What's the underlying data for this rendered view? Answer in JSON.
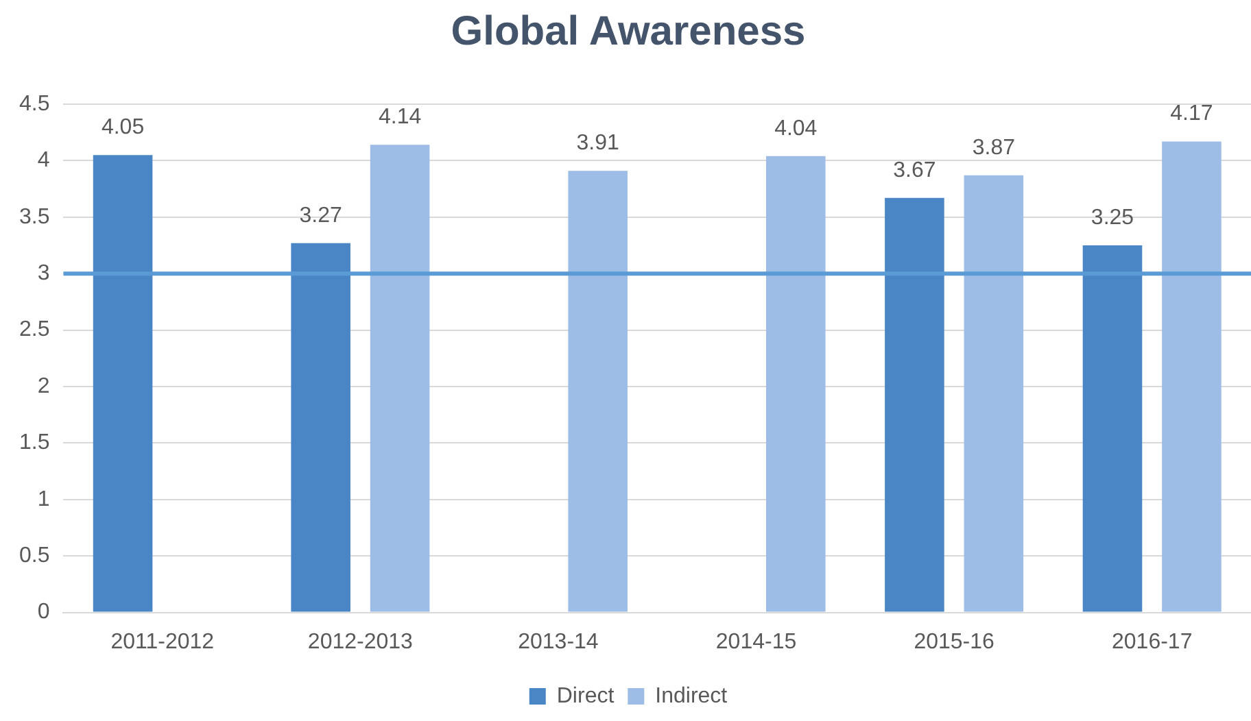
{
  "chart_data": {
    "type": "bar",
    "title": "Global Awareness",
    "categories": [
      "2011-2012",
      "2012-2013",
      "2013-14",
      "2014-15",
      "2015-16",
      "2016-17"
    ],
    "series": [
      {
        "name": "Direct",
        "color": "#4a86c5",
        "values": [
          4.05,
          3.27,
          null,
          null,
          3.67,
          3.25
        ]
      },
      {
        "name": "Indirect",
        "color": "#9dbde6",
        "values": [
          null,
          4.14,
          3.91,
          4.04,
          3.87,
          4.17
        ]
      }
    ],
    "ylim": [
      0,
      4.5
    ],
    "yticks": [
      0,
      0.5,
      1,
      1.5,
      2,
      2.5,
      3,
      3.5,
      4,
      4.5
    ],
    "ref_lines": [
      {
        "axis": "y",
        "value": 3,
        "color": "#5b9bd5"
      }
    ],
    "grid": "y",
    "legend": "bottom",
    "data_labels": true
  }
}
